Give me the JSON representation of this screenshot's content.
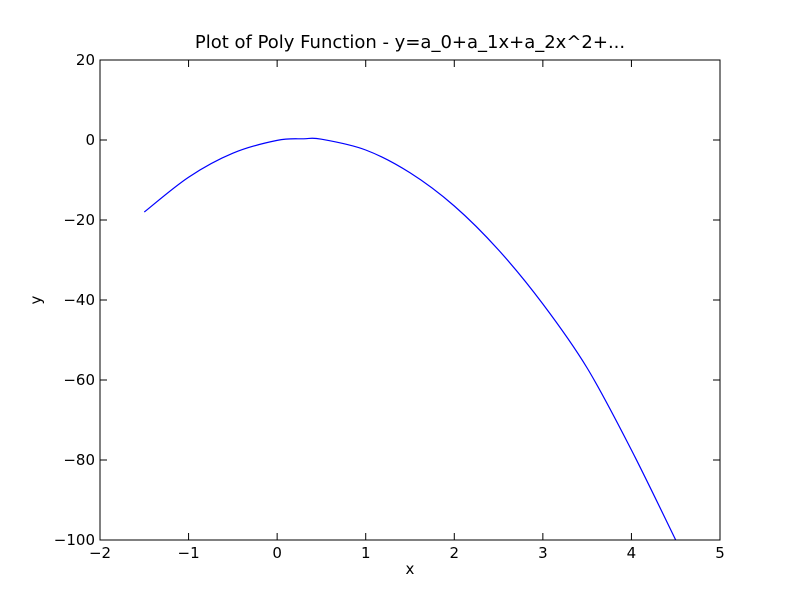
{
  "chart_data": {
    "type": "line",
    "title": "Plot of Poly Function - y=a_0+a_1x+a_2x^2+...",
    "xlabel": "x",
    "ylabel": "y",
    "xlim": [
      -2,
      5
    ],
    "ylim": [
      -100,
      20
    ],
    "xticks": [
      -2,
      -1,
      0,
      1,
      2,
      3,
      4,
      5
    ],
    "yticks": [
      -100,
      -80,
      -60,
      -40,
      -20,
      0,
      20
    ],
    "xtick_labels": [
      "−2",
      "−1",
      "0",
      "1",
      "2",
      "3",
      "4",
      "5"
    ],
    "ytick_labels": [
      "−100",
      "−80",
      "−60",
      "−40",
      "−20",
      "0",
      "20"
    ],
    "grid": false,
    "series": [
      {
        "color": "#0000ff",
        "x": [
          -1.5,
          -1.0,
          -0.5,
          0.0,
          0.3,
          0.5,
          1.0,
          1.5,
          2.0,
          2.5,
          3.0,
          3.5,
          4.0,
          4.5
        ],
        "y": [
          -18.0,
          -9.3,
          -3.3,
          -0.1,
          0.3,
          0.2,
          -2.5,
          -8.2,
          -16.5,
          -27.5,
          -41.0,
          -57.0,
          -77.5,
          -100.0
        ]
      }
    ]
  }
}
